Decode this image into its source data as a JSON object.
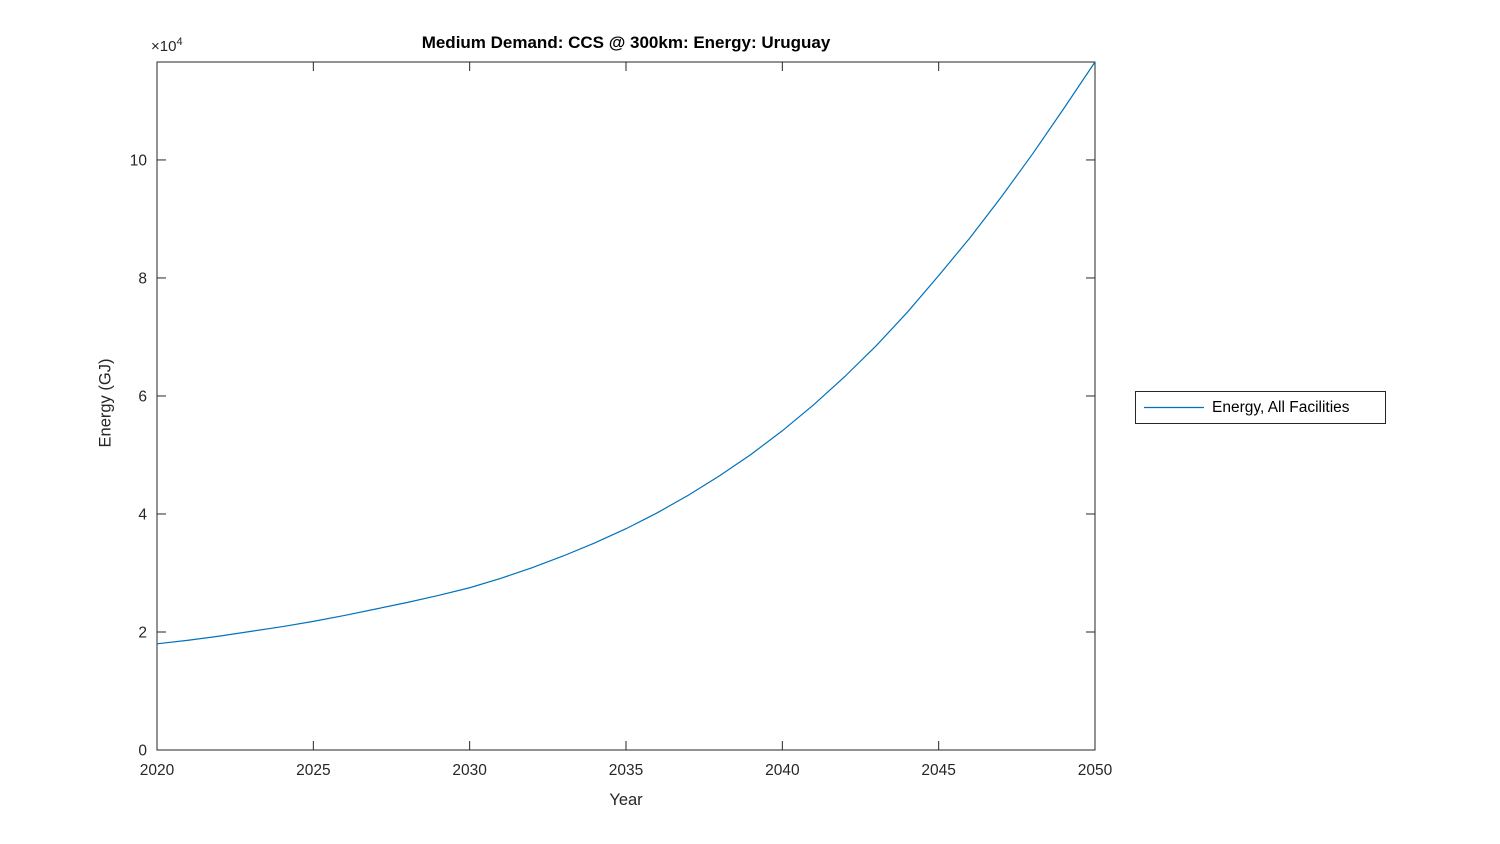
{
  "chart_data": {
    "type": "line",
    "title": "Medium Demand: CCS @ 300km: Energy: Uruguay",
    "xlabel": "Year",
    "ylabel": "Energy (GJ)",
    "offset_base": "×10",
    "offset_exp": "4",
    "x": [
      2020,
      2021,
      2022,
      2023,
      2024,
      2025,
      2026,
      2027,
      2028,
      2029,
      2030,
      2031,
      2032,
      2033,
      2034,
      2035,
      2036,
      2037,
      2038,
      2039,
      2040,
      2041,
      2042,
      2043,
      2044,
      2045,
      2046,
      2047,
      2048,
      2049,
      2050
    ],
    "series": [
      {
        "name": "Energy, All Facilities",
        "color": "#0072BD",
        "values": [
          18000,
          18600,
          19300,
          20100,
          20900,
          21800,
          22800,
          23900,
          25000,
          26200,
          27500,
          29100,
          30900,
          32900,
          35100,
          37500,
          40200,
          43200,
          46500,
          50100,
          54100,
          58500,
          63300,
          68500,
          74200,
          80400,
          86800,
          93700,
          101000,
          108700,
          116600
        ]
      }
    ],
    "xlim": [
      2020,
      2050
    ],
    "ylim": [
      0,
      116600
    ],
    "xticks": [
      2020,
      2025,
      2030,
      2035,
      2040,
      2045,
      2050
    ],
    "xtick_labels": [
      "2020",
      "2025",
      "2030",
      "2035",
      "2040",
      "2045",
      "2050"
    ],
    "yticks": [
      0,
      20000,
      40000,
      60000,
      80000,
      100000
    ],
    "ytick_labels": [
      "0",
      "2",
      "4",
      "6",
      "8",
      "10"
    ],
    "grid": false,
    "box": true,
    "legend_position": "right-outside"
  },
  "colors": {
    "line": "#0072BD",
    "axis": "#262626",
    "tick_text": "#262626",
    "title_text": "#000000",
    "background": "#ffffff"
  }
}
